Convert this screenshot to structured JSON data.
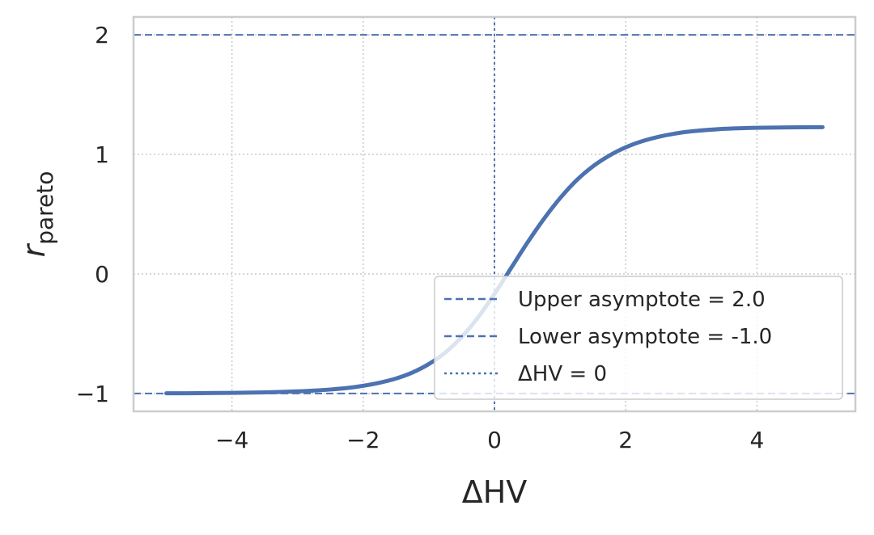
{
  "chart_data": {
    "type": "line",
    "title": "",
    "xlabel": "ΔHV",
    "ylabel_base": "r",
    "ylabel_sub": "pareto",
    "xlim": [
      -5.5,
      5.5
    ],
    "ylim": [
      -1.15,
      2.15
    ],
    "xticks": [
      -4,
      -2,
      0,
      2,
      4
    ],
    "xtick_labels": [
      "−4",
      "−2",
      "0",
      "2",
      "4"
    ],
    "yticks": [
      -1,
      0,
      1,
      2
    ],
    "ytick_labels": [
      "−1",
      "0",
      "1",
      "2"
    ],
    "grid": true,
    "legend_position": "lower-right",
    "series": [
      {
        "label": "",
        "color": "#4c72b0",
        "style": "solid",
        "x": [
          -5,
          -4.5,
          -4,
          -3.5,
          -3,
          -2.75,
          -2.5,
          -2.25,
          -2,
          -1.75,
          -1.5,
          -1.25,
          -1,
          -0.75,
          -0.5,
          -0.25,
          0,
          0.25,
          0.5,
          0.75,
          1,
          1.25,
          1.5,
          1.75,
          2,
          2.25,
          2.5,
          2.75,
          3,
          3.5,
          4,
          4.5,
          5
        ],
        "y": [
          -0.999,
          -0.998,
          -0.995,
          -0.991,
          -0.983,
          -0.976,
          -0.967,
          -0.955,
          -0.936,
          -0.91,
          -0.875,
          -0.825,
          -0.754,
          -0.658,
          -0.528,
          -0.364,
          -0.168,
          0.046,
          0.26,
          0.458,
          0.634,
          0.783,
          0.9,
          0.99,
          1.059,
          1.11,
          1.147,
          1.174,
          1.193,
          1.214,
          1.223,
          1.226,
          1.228
        ]
      }
    ],
    "reference_lines": [
      {
        "kind": "horizontal",
        "value": 2.0,
        "style": "dashed",
        "color": "#4c72b0",
        "label": "Upper asymptote = 2.0"
      },
      {
        "kind": "horizontal",
        "value": -1.0,
        "style": "dashed",
        "color": "#4c72b0",
        "label": "Lower asymptote = -1.0"
      },
      {
        "kind": "vertical",
        "value": 0,
        "style": "dotted",
        "color": "#4c72b0",
        "label": "ΔHV = 0"
      }
    ]
  },
  "legend": {
    "items": [
      {
        "label": "Upper asymptote = 2.0",
        "style": "dashed"
      },
      {
        "label": "Lower asymptote = -1.0",
        "style": "dashed"
      },
      {
        "label": "ΔHV = 0",
        "style": "dotted"
      }
    ]
  },
  "colors": {
    "series": "#4c72b0",
    "frame": "#cccccc",
    "grid": "#c8c8c8",
    "text": "#262626"
  }
}
